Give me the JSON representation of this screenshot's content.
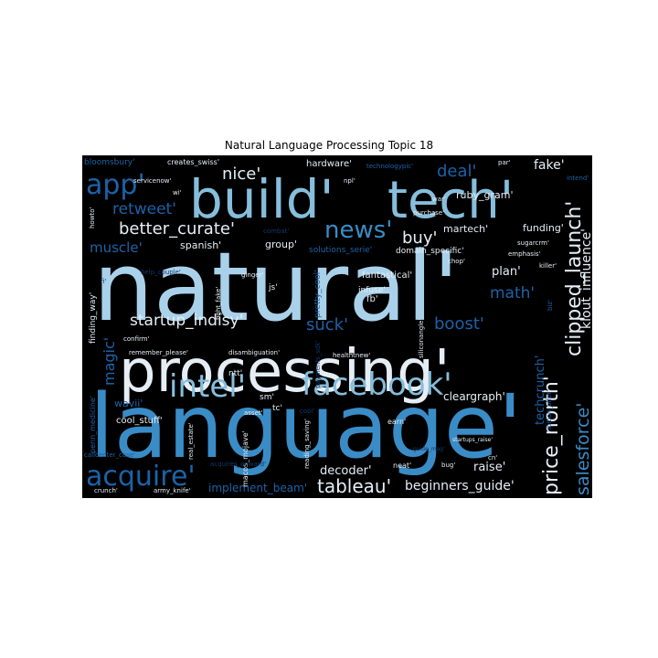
{
  "title": "Natural Language Processing Topic 18",
  "palette": {
    "background": "#000000",
    "pale": "#a9d1ea",
    "light": "#86bedc",
    "mid": "#3a8cc6",
    "deep": "#1d62a8",
    "dark": "#11396b",
    "faint": "#0c2a4f",
    "white": "#e6eef5",
    "grey": "#c4ccd3"
  },
  "words": [
    {
      "text": "natural'",
      "color": "pale",
      "weight": 100
    },
    {
      "text": "language'",
      "color": "mid",
      "weight": 98
    },
    {
      "text": "processing'",
      "color": "white",
      "weight": 74
    },
    {
      "text": "build'",
      "color": "light",
      "weight": 62
    },
    {
      "text": "tech'",
      "color": "light",
      "weight": 58
    },
    {
      "text": "facebook'",
      "color": "light",
      "weight": 36
    },
    {
      "text": "intel'",
      "color": "light",
      "weight": 30
    },
    {
      "text": "acquire'",
      "color": "deep",
      "weight": 26
    },
    {
      "text": "app'",
      "color": "deep",
      "weight": 26
    },
    {
      "text": "news'",
      "color": "mid",
      "weight": 24
    },
    {
      "text": "clipped_launch'",
      "color": "white",
      "weight": 20
    },
    {
      "text": "price_north'",
      "color": "white",
      "weight": 20
    },
    {
      "text": "salesforce'",
      "color": "mid",
      "weight": 18
    },
    {
      "text": "tableau'",
      "color": "white",
      "weight": 18
    },
    {
      "text": "retweet'",
      "color": "deep",
      "weight": 16
    },
    {
      "text": "deal'",
      "color": "deep",
      "weight": 16
    },
    {
      "text": "better_curate'",
      "color": "white",
      "weight": 16
    },
    {
      "text": "nice'",
      "color": "white",
      "weight": 16
    },
    {
      "text": "startup_indisy'",
      "color": "white",
      "weight": 15
    },
    {
      "text": "suck'",
      "color": "deep",
      "weight": 15
    },
    {
      "text": "boost'",
      "color": "deep",
      "weight": 15
    },
    {
      "text": "buy'",
      "color": "white",
      "weight": 15
    },
    {
      "text": "magic'",
      "color": "deep",
      "weight": 14
    },
    {
      "text": "muscle'",
      "color": "deep",
      "weight": 14
    },
    {
      "text": "math'",
      "color": "deep",
      "weight": 14
    },
    {
      "text": "fake'",
      "color": "white",
      "weight": 12
    },
    {
      "text": "klout_influence'",
      "color": "white",
      "weight": 12
    },
    {
      "text": "techcrunch'",
      "color": "deep",
      "weight": 12
    },
    {
      "text": "beginners_guide'",
      "color": "white",
      "weight": 12
    },
    {
      "text": "raise'",
      "color": "white",
      "weight": 12
    },
    {
      "text": "decoder'",
      "color": "white",
      "weight": 12
    },
    {
      "text": "cleargraph'",
      "color": "white",
      "weight": 11
    },
    {
      "text": "plan'",
      "color": "white",
      "weight": 11
    },
    {
      "text": "implement_beam'",
      "color": "deep",
      "weight": 11
    },
    {
      "text": "hardware'",
      "color": "white",
      "weight": 10
    },
    {
      "text": "ruby_gram'",
      "color": "white",
      "weight": 10
    },
    {
      "text": "funding'",
      "color": "white",
      "weight": 10
    },
    {
      "text": "martech'",
      "color": "white",
      "weight": 10
    },
    {
      "text": "fantastical'",
      "color": "white",
      "weight": 10
    },
    {
      "text": "spanish'",
      "color": "white",
      "weight": 10
    },
    {
      "text": "group'",
      "color": "white",
      "weight": 10
    },
    {
      "text": "wavii'",
      "color": "deep",
      "weight": 10
    },
    {
      "text": "cool_stuff'",
      "color": "white",
      "weight": 9
    },
    {
      "text": "fb'",
      "color": "white",
      "weight": 9
    },
    {
      "text": "finding_way'",
      "color": "white",
      "weight": 9
    },
    {
      "text": "bloomsbury'",
      "color": "deep",
      "weight": 8
    },
    {
      "text": "creates_swiss'",
      "color": "white",
      "weight": 7
    },
    {
      "text": "wi'",
      "color": "white",
      "weight": 7
    },
    {
      "text": "servicenow'",
      "color": "white",
      "weight": 7
    },
    {
      "text": "howto'",
      "color": "white",
      "weight": 7
    },
    {
      "text": "combat'",
      "color": "dark",
      "weight": 7
    },
    {
      "text": "technologypic'",
      "color": "deep",
      "weight": 7
    },
    {
      "text": "npl'",
      "color": "white",
      "weight": 7
    },
    {
      "text": "par'",
      "color": "white",
      "weight": 7
    },
    {
      "text": "war'",
      "color": "white",
      "weight": 7
    },
    {
      "text": "purchase'",
      "color": "white",
      "weight": 7
    },
    {
      "text": "intend'",
      "color": "deep",
      "weight": 7
    },
    {
      "text": "sugarcrm'",
      "color": "white",
      "weight": 7
    },
    {
      "text": "emphasis'",
      "color": "white",
      "weight": 7
    },
    {
      "text": "killer'",
      "color": "white",
      "weight": 7
    },
    {
      "text": "solutions_serie'",
      "color": "deep",
      "weight": 8
    },
    {
      "text": "domain_specific'",
      "color": "white",
      "weight": 8
    },
    {
      "text": "chop'",
      "color": "white",
      "weight": 7
    },
    {
      "text": "help_couple'",
      "color": "dark",
      "weight": 7
    },
    {
      "text": "ginger'",
      "color": "white",
      "weight": 7
    },
    {
      "text": "js'",
      "color": "white",
      "weight": 8
    },
    {
      "text": "fight_fake'",
      "color": "white",
      "weight": 7
    },
    {
      "text": "pretty_cool'",
      "color": "deep",
      "weight": 8
    },
    {
      "text": "infuse'",
      "color": "white",
      "weight": 8
    },
    {
      "text": "biz'",
      "color": "deep",
      "weight": 7
    },
    {
      "text": "confirm'",
      "color": "white",
      "weight": 7
    },
    {
      "text": "remember_please'",
      "color": "white",
      "weight": 7
    },
    {
      "text": "disambiguation'",
      "color": "white",
      "weight": 7
    },
    {
      "text": "healthtnew'",
      "color": "white",
      "weight": 7
    },
    {
      "text": "payments_sdk'",
      "color": "dark",
      "weight": 7
    },
    {
      "text": "siliconangle'",
      "color": "white",
      "weight": 7
    },
    {
      "text": "ntt'",
      "color": "white",
      "weight": 8
    },
    {
      "text": "tc'",
      "color": "white",
      "weight": 8
    },
    {
      "text": "sm'",
      "color": "white",
      "weight": 8
    },
    {
      "text": "asset'",
      "color": "white",
      "weight": 7
    },
    {
      "text": "cool'",
      "color": "dark",
      "weight": 7
    },
    {
      "text": "penn_medicine'",
      "color": "deep",
      "weight": 8
    },
    {
      "text": "real_estate'",
      "color": "white",
      "weight": 7
    },
    {
      "text": "earn'",
      "color": "white",
      "weight": 8
    },
    {
      "text": "macos_mojave'",
      "color": "white",
      "weight": 8
    },
    {
      "text": "reading_saving'",
      "color": "white",
      "weight": 7
    },
    {
      "text": "guide_mag'",
      "color": "dark",
      "weight": 6
    },
    {
      "text": "startups_raise'",
      "color": "white",
      "weight": 6
    },
    {
      "text": "callcenter_case'",
      "color": "deep",
      "weight": 7
    },
    {
      "text": "acquires_onward'",
      "color": "dark",
      "weight": 7
    },
    {
      "text": "neat'",
      "color": "white",
      "weight": 8
    },
    {
      "text": "cn'",
      "color": "white",
      "weight": 7
    },
    {
      "text": "bug'",
      "color": "white",
      "weight": 7
    },
    {
      "text": "lbibon_offer'",
      "color": "deep",
      "weight": 7
    },
    {
      "text": "crunch'",
      "color": "white",
      "weight": 7
    },
    {
      "text": "army_knife'",
      "color": "white",
      "weight": 7
    },
    {
      "text": "fi'",
      "color": "dark",
      "weight": 7
    }
  ]
}
